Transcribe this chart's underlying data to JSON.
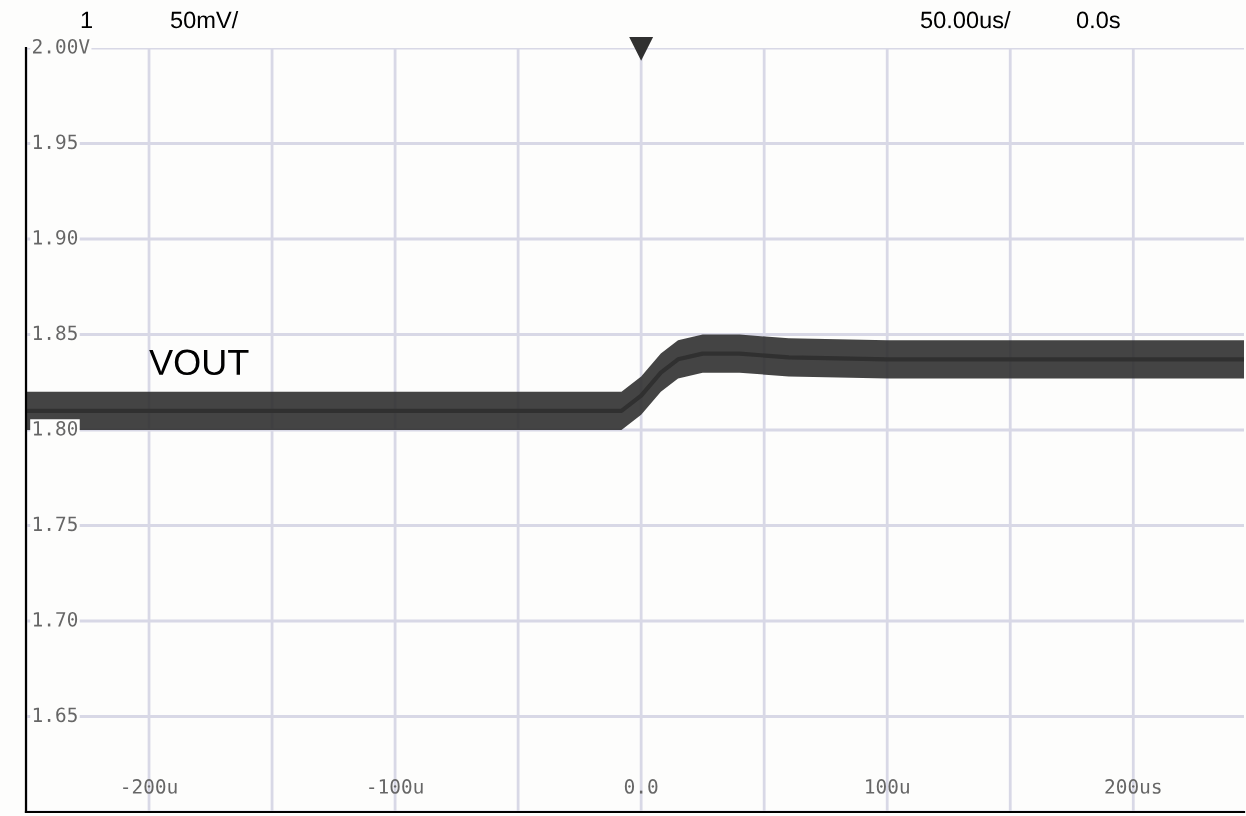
{
  "chart_data": {
    "type": "line",
    "annotations": [
      "1",
      "50mV/",
      "50.00us/",
      "0.0s"
    ],
    "x": [
      -250,
      -200,
      -150,
      -100,
      -50,
      -8,
      0,
      8,
      15,
      25,
      40,
      60,
      100,
      150,
      200,
      245
    ],
    "series": [
      {
        "name": "VOUT",
        "color": "#303030",
        "values": [
          1.81,
          1.81,
          1.81,
          1.81,
          1.81,
          1.81,
          1.818,
          1.83,
          1.837,
          1.84,
          1.84,
          1.838,
          1.837,
          1.837,
          1.837,
          1.837
        ],
        "lower": [
          1.8,
          1.8,
          1.8,
          1.8,
          1.8,
          1.8,
          1.808,
          1.82,
          1.827,
          1.83,
          1.83,
          1.828,
          1.827,
          1.827,
          1.827,
          1.827
        ],
        "upper": [
          1.82,
          1.82,
          1.82,
          1.82,
          1.82,
          1.82,
          1.828,
          1.84,
          1.847,
          1.85,
          1.85,
          1.848,
          1.847,
          1.847,
          1.847,
          1.847
        ]
      }
    ],
    "xlim": [
      -250,
      245
    ],
    "xticks": [
      {
        "value": -250,
        "label": null
      },
      {
        "value": -200,
        "label": "-200u"
      },
      {
        "value": -150,
        "label": null
      },
      {
        "value": -100,
        "label": "-100u"
      },
      {
        "value": -50,
        "label": null
      },
      {
        "value": 0,
        "label": "0.0"
      },
      {
        "value": 50,
        "label": null
      },
      {
        "value": 100,
        "label": "100u"
      },
      {
        "value": 150,
        "label": null
      },
      {
        "value": 200,
        "label": "200us"
      }
    ],
    "ylim": [
      1.6,
      2.0
    ],
    "yticks": [
      {
        "value": 1.6,
        "label": null
      },
      {
        "value": 1.65,
        "label": "1.65"
      },
      {
        "value": 1.7,
        "label": "1.70"
      },
      {
        "value": 1.75,
        "label": "1.75"
      },
      {
        "value": 1.8,
        "label": "1.80"
      },
      {
        "value": 1.85,
        "label": "1.85"
      },
      {
        "value": 1.9,
        "label": "1.90"
      },
      {
        "value": 1.95,
        "label": "1.95"
      },
      {
        "value": 2.0,
        "label": "2.00V"
      }
    ],
    "grid": true,
    "legend": false,
    "marker": "none",
    "line_style": "solid"
  }
}
